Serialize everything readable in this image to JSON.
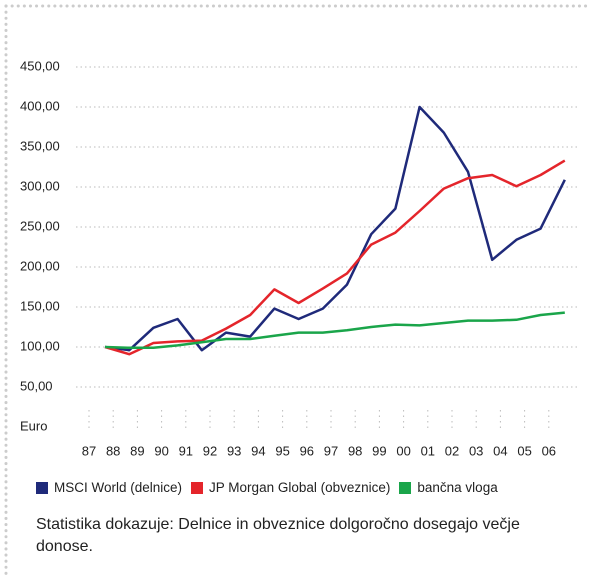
{
  "chart_data": {
    "type": "line",
    "categories": [
      "87",
      "88",
      "89",
      "90",
      "91",
      "92",
      "93",
      "94",
      "95",
      "96",
      "97",
      "98",
      "99",
      "00",
      "01",
      "02",
      "03",
      "04",
      "05",
      "06"
    ],
    "ylabel": "Euro",
    "ylim": [
      0,
      450
    ],
    "yticks": [
      {
        "value": 50,
        "label": "50,00"
      },
      {
        "value": 100,
        "label": "100,00"
      },
      {
        "value": 150,
        "label": "150,00"
      },
      {
        "value": 200,
        "label": "200,00"
      },
      {
        "value": 250,
        "label": "250,00"
      },
      {
        "value": 300,
        "label": "300,00"
      },
      {
        "value": 350,
        "label": "350,00"
      },
      {
        "value": 400,
        "label": "400,00"
      },
      {
        "value": 450,
        "label": "450,00"
      }
    ],
    "grid": true,
    "series": [
      {
        "name": "MSCI World (delnice)",
        "color": "#1f2a7a",
        "values": [
          100,
          96,
          124,
          135,
          96,
          118,
          113,
          148,
          135,
          148,
          178,
          241,
          273,
          400,
          368,
          319,
          209,
          234,
          248,
          309
        ]
      },
      {
        "name": "JP Morgan Global (obveznice)",
        "color": "#e4252b",
        "values": [
          100,
          91,
          105,
          107,
          108,
          123,
          140,
          172,
          155,
          173,
          192,
          228,
          243,
          270,
          298,
          311,
          315,
          301,
          315,
          333
        ]
      },
      {
        "name": "bančna vloga",
        "color": "#1aa54a",
        "values": [
          100,
          99,
          99,
          102,
          106,
          110,
          110,
          114,
          118,
          118,
          121,
          125,
          128,
          127,
          130,
          133,
          133,
          134,
          140,
          143
        ]
      }
    ],
    "caption": "Statistika dokazuje: Delnice in obveznice dolgoročno dosegajo večje donose."
  }
}
